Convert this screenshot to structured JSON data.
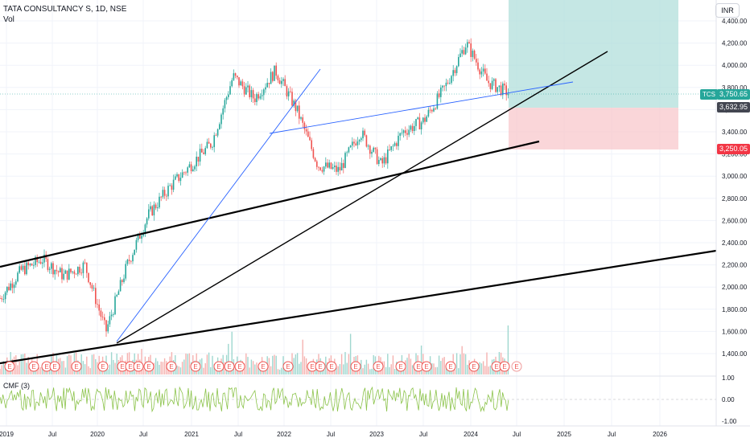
{
  "header": {
    "title": "TATA CONSULTANCY S, 1D, NSE",
    "sub": "Vol"
  },
  "currency": "INR",
  "price_axis": {
    "ticks": [
      "4,400.00",
      "4,200.00",
      "4,000.00",
      "3,800.00",
      "3,600.00",
      "3,400.00",
      "3,200.00",
      "3,000.00",
      "2,800.00",
      "2,600.00",
      "2,400.00",
      "2,200.00",
      "2,000.00",
      "1,800.00",
      "1,600.00",
      "1,400.00"
    ]
  },
  "price_tags": {
    "symbol": "TCS",
    "last": "3,750.65",
    "entry": "3,632.95",
    "stop": "3,250.05"
  },
  "cmf": {
    "label": "CMF (3)",
    "ticks": [
      "1.00",
      "0.00",
      "-1.00"
    ]
  },
  "time_axis": {
    "labels": [
      "2019",
      "Jul",
      "2020",
      "Jul",
      "2021",
      "Jul",
      "2022",
      "Jul",
      "2023",
      "Jul",
      "2024",
      "Jul",
      "2025",
      "Jul",
      "2026"
    ]
  },
  "event_marker": "E",
  "colors": {
    "up": "#26a69a",
    "down": "#ef5350",
    "target_zone": "#b2dfdb",
    "stop_zone": "#f8c8cc",
    "trendline_blue": "#2962ff",
    "cmf_line": "#8bc34a"
  },
  "chart_data": {
    "type": "line",
    "title": "TATA CONSULTANCY S, 1D, NSE",
    "xlabel": "",
    "ylabel": "",
    "x": [
      "2019-01",
      "2019-04",
      "2019-07",
      "2019-10",
      "2020-01",
      "2020-03",
      "2020-06",
      "2020-09",
      "2020-12",
      "2021-03",
      "2021-06",
      "2021-09",
      "2021-12",
      "2022-01",
      "2022-04",
      "2022-07",
      "2022-10",
      "2023-01",
      "2023-04",
      "2023-07",
      "2023-10",
      "2024-01",
      "2024-03",
      "2024-05",
      "2024-06"
    ],
    "series": [
      {
        "values": [
          1900,
          2150,
          2250,
          2100,
          2200,
          1600,
          2200,
          2650,
          2900,
          3100,
          3300,
          3900,
          3700,
          3950,
          3600,
          3100,
          3050,
          3400,
          3100,
          3400,
          3500,
          3800,
          4200,
          3850,
          3750
        ]
      }
    ],
    "ylim": [
      1300,
      4450
    ],
    "last": 3750.65,
    "entry": 3632.95,
    "stop": 3250.05,
    "target": 4450
  }
}
